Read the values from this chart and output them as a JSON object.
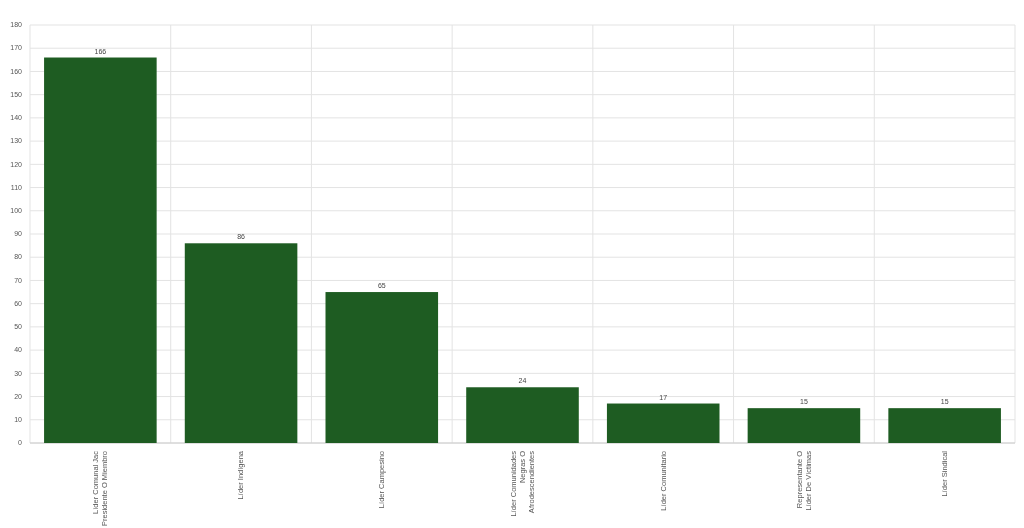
{
  "chart_data": {
    "type": "bar",
    "categories": [
      "Líder Comunal Jac Presidente O Miembro",
      "Líder Indígena",
      "Líder Campesino",
      "Líder Comunidades Negras O Afrodescendientes",
      "Líder Comunitario",
      "Representante O Líder De Víctimas",
      "Líder Sindical"
    ],
    "values": [
      166,
      86,
      65,
      24,
      17,
      15,
      15
    ],
    "color": "#1e5c22",
    "ylim": [
      0,
      180
    ],
    "yticks": [
      0,
      10,
      20,
      30,
      40,
      50,
      60,
      70,
      80,
      90,
      100,
      110,
      120,
      130,
      140,
      150,
      160,
      170,
      180
    ],
    "grid": true,
    "data_labels": true
  }
}
